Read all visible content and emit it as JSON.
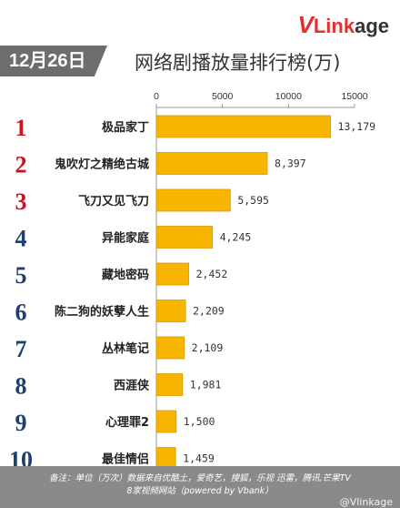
{
  "brand": {
    "logo_v": "V",
    "logo_link": "Link",
    "logo_age": "age"
  },
  "date_label": "12月26日",
  "title": "网络剧播放量排行榜(万)",
  "footer": {
    "line1": "备注：单位（万次）数据来自优酷土，爱奇艺，搜狐，乐视  迅雷，腾讯,芒果TV",
    "line2": "8家视频网站（powered by Vbank）",
    "watermark": "@Vlinkage"
  },
  "colors": {
    "bar": "#f7b500",
    "bar_edge": "#d89a00",
    "rank_top3": "#c8161d",
    "rank_rest": "#1f3f6d"
  },
  "chart_data": {
    "type": "bar",
    "orientation": "horizontal",
    "axis_position": "top",
    "xlim": [
      0,
      15000
    ],
    "xticks": [
      0,
      5000,
      10000,
      15000
    ],
    "xtick_labels": [
      "0",
      "5000",
      "10000",
      "15000"
    ],
    "grid": false,
    "ranks": [
      "1",
      "2",
      "3",
      "4",
      "5",
      "6",
      "7",
      "8",
      "9",
      "10"
    ],
    "categories": [
      "极品家丁",
      "鬼吹灯之精绝古城",
      "飞刀又见飞刀",
      "异能家庭",
      "藏地密码",
      "陈二狗的妖孽人生",
      "丛林笔记",
      "西涯侠",
      "心理罪2",
      "最佳情侣"
    ],
    "values": [
      13179,
      8397,
      5595,
      4245,
      2452,
      2209,
      2109,
      1981,
      1500,
      1459
    ],
    "value_labels": [
      "13,179",
      "8,397",
      "5,595",
      "4,245",
      "2,452",
      "2,209",
      "2,109",
      "1,981",
      "1,500",
      "1,459"
    ]
  }
}
